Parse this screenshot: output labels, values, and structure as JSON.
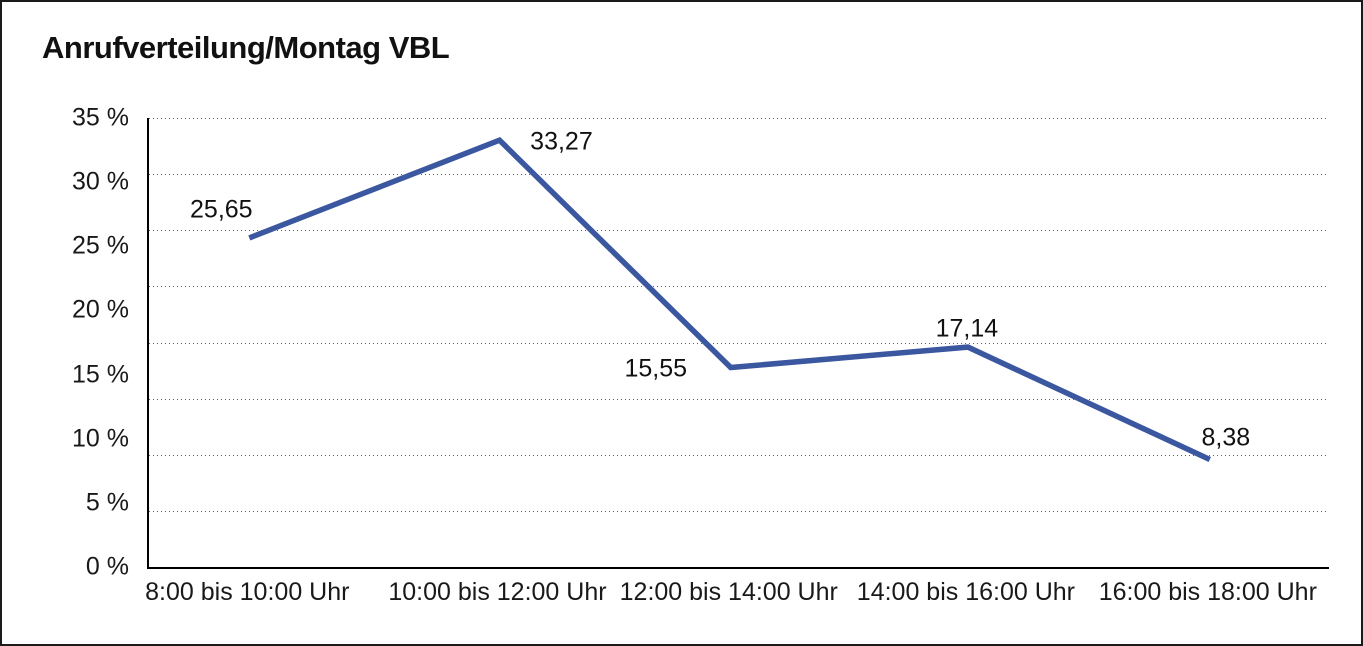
{
  "chart_data": {
    "type": "line",
    "title": "Anrufverteilung/Montag VBL",
    "categories": [
      "8:00 bis 10:00 Uhr",
      "10:00 bis 12:00 Uhr",
      "12:00 bis 14:00 Uhr",
      "14:00 bis 16:00 Uhr",
      "16:00 bis 18:00 Uhr"
    ],
    "values": [
      25.65,
      33.27,
      15.55,
      17.14,
      8.38
    ],
    "value_labels": [
      "25,65",
      "33,27",
      "15,55",
      "17,14",
      "8,38"
    ],
    "y_tick_labels": [
      "35 %",
      "30 %",
      "25 %",
      "20 %",
      "15 %",
      "10 %",
      "5 %",
      "0 %"
    ],
    "ylim": [
      0,
      35
    ],
    "xlabel": "",
    "ylabel": "",
    "grid": "horizontal-dotted",
    "legend": "none",
    "series_color": "#3A57A0",
    "text_color": "#111111"
  }
}
